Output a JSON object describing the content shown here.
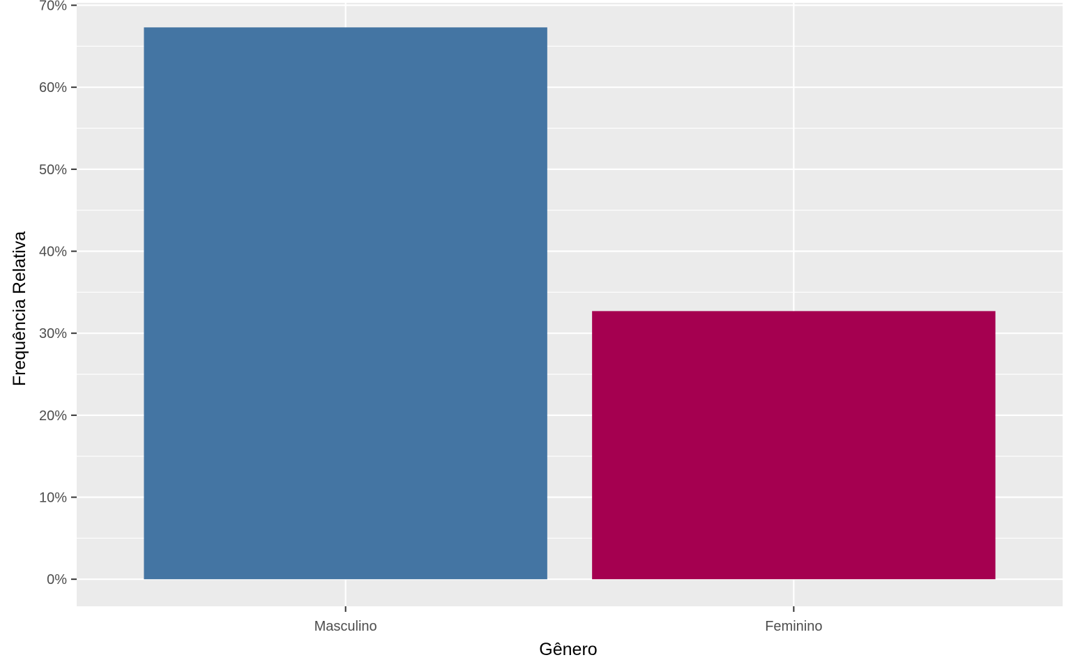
{
  "chart_data": {
    "type": "bar",
    "categories": [
      "Masculino",
      "Feminino"
    ],
    "values": [
      67.3,
      32.7
    ],
    "value_unit": "%",
    "xlabel": "Gênero",
    "ylabel": "Frequência Relativa",
    "ylim": [
      -3.3,
      70.3
    ],
    "yticks": [
      0,
      10,
      20,
      30,
      40,
      50,
      60,
      70
    ],
    "ytick_labels": [
      "0%",
      "10%",
      "20%",
      "30%",
      "40%",
      "50%",
      "60%",
      "70%"
    ],
    "colors": [
      "#4475A3",
      "#A50050"
    ],
    "grid": true,
    "panel_background": "#EBEBEB",
    "legend": "none"
  }
}
